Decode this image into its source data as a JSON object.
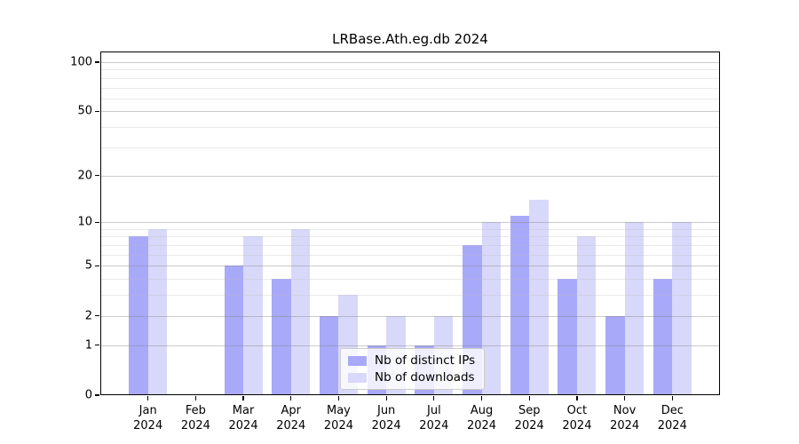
{
  "chart_data": {
    "type": "bar",
    "title": "LRBase.Ath.eg.db 2024",
    "xlabel": "",
    "ylabel": "",
    "scale": "log1p",
    "axis_top": 116,
    "ylim": [
      0,
      116
    ],
    "grid": "on",
    "legend_position": "lower-center-inside",
    "categories": [
      "Jan",
      "Feb",
      "Mar",
      "Apr",
      "May",
      "Jun",
      "Jul",
      "Aug",
      "Sep",
      "Oct",
      "Nov",
      "Dec"
    ],
    "category_year": "2024",
    "series": [
      {
        "name": "Nb of distinct IPs",
        "color": "#a9a9fa",
        "values": [
          8,
          0,
          5,
          4,
          2,
          1,
          1,
          7,
          11,
          4,
          2,
          4
        ]
      },
      {
        "name": "Nb of downloads",
        "color": "#d8d8fa",
        "values": [
          9,
          0,
          8,
          9,
          3,
          2,
          2,
          10,
          14,
          8,
          10,
          10
        ]
      }
    ],
    "y_major_ticks": [
      0,
      1,
      2,
      5,
      10,
      20,
      50,
      100
    ],
    "y_minor_gridlines": [
      3,
      4,
      6,
      7,
      8,
      9,
      30,
      40,
      60,
      70,
      80,
      90
    ],
    "colors": {
      "axis": "#000000",
      "background": "#ffffff",
      "major_grid": "#cbcbcb",
      "minor_grid": "#ececec"
    }
  }
}
